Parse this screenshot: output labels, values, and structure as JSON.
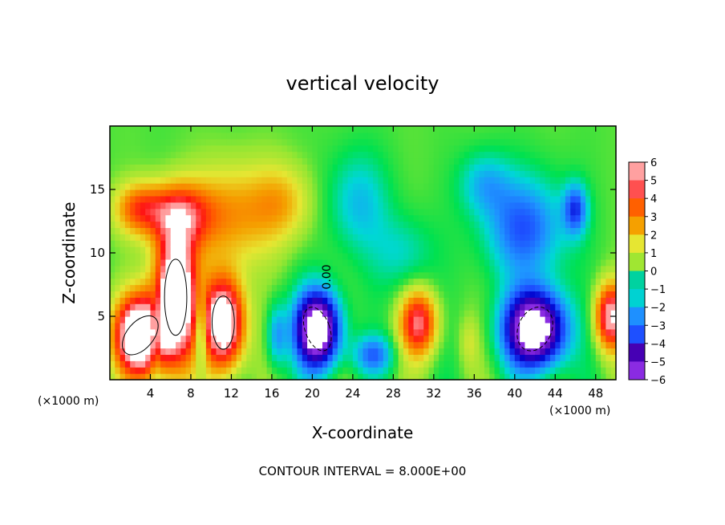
{
  "chart_data": {
    "type": "heatmap",
    "title": "vertical velocity",
    "xlabel": "X-coordinate",
    "ylabel": "Z-coordinate",
    "x_unit_left": "(×1000 m)",
    "x_unit_right": "(×1000 m)",
    "xlim": [
      0,
      50
    ],
    "ylim": [
      0,
      20
    ],
    "x_ticks": [
      4,
      8,
      12,
      16,
      20,
      24,
      28,
      32,
      36,
      40,
      44,
      48
    ],
    "y_ticks": [
      5,
      10,
      15
    ],
    "colorbar": {
      "levels": [
        6,
        5,
        4,
        3,
        2,
        1,
        0,
        -1,
        -2,
        -3,
        -4,
        -5,
        -6
      ],
      "colors": [
        "#8a2be2",
        "#5a00b4",
        "#0000cd",
        "#1e3cff",
        "#1e90ff",
        "#00d2d2",
        "#00e050",
        "#35e035",
        "#a0e632",
        "#e6e632",
        "#f0a000",
        "#ff5a00",
        "#ff0000",
        "#ff5050",
        "#ff9a9a"
      ]
    },
    "contour_label": "0.00",
    "footer": "CONTOUR INTERVAL = 8.000E+00",
    "cells": [
      {
        "x": 3.0,
        "z": 3.5,
        "w": -1.0,
        "sx": 2.4,
        "sz": 3.0,
        "v": 9
      },
      {
        "x": 6.5,
        "z": 6.5,
        "w": 0.0,
        "sx": 2.0,
        "sz": 5.0,
        "v": 9
      },
      {
        "x": 11.2,
        "z": 4.5,
        "w": 0.0,
        "sx": 2.0,
        "sz": 3.5,
        "v": 8
      },
      {
        "x": 7.0,
        "z": 13.0,
        "w": 0.0,
        "sx": 3.0,
        "sz": 2.5,
        "v": 4
      },
      {
        "x": 3.0,
        "z": 13.5,
        "w": 0.0,
        "sx": 2.5,
        "sz": 2.0,
        "v": 3.5
      },
      {
        "x": 12.0,
        "z": 13.0,
        "w": 0.0,
        "sx": 4.0,
        "sz": 4.0,
        "v": 2.5
      },
      {
        "x": 17.0,
        "z": 14.0,
        "w": 0.0,
        "sx": 3.0,
        "sz": 3.0,
        "v": 2
      },
      {
        "x": 4.5,
        "z": 4.0,
        "w": 0.0,
        "sx": 0.6,
        "sz": 3.0,
        "v": -3
      },
      {
        "x": 9.0,
        "z": 4.0,
        "w": 0.0,
        "sx": 0.6,
        "sz": 3.0,
        "v": -3
      },
      {
        "x": 20.5,
        "z": 4.0,
        "w": 0.5,
        "sx": 2.2,
        "sz": 3.0,
        "v": -9
      },
      {
        "x": 24.5,
        "z": 14.0,
        "w": 0.0,
        "sx": 3.0,
        "sz": 4.0,
        "v": -2
      },
      {
        "x": 29.0,
        "z": 10.0,
        "w": 0.0,
        "sx": 3.0,
        "sz": 3.0,
        "v": -1.5
      },
      {
        "x": 30.5,
        "z": 4.5,
        "w": -0.5,
        "sx": 1.8,
        "sz": 2.5,
        "v": 5
      },
      {
        "x": 35.5,
        "z": 3.0,
        "w": 0.0,
        "sx": 1.0,
        "sz": 2.0,
        "v": 1
      },
      {
        "x": 42.0,
        "z": 4.0,
        "w": -0.6,
        "sx": 3.0,
        "sz": 3.0,
        "v": -9
      },
      {
        "x": 41.0,
        "z": 12.0,
        "w": 0.0,
        "sx": 4.0,
        "sz": 4.0,
        "v": -3.5
      },
      {
        "x": 37.0,
        "z": 15.5,
        "w": 0.0,
        "sx": 2.5,
        "sz": 2.5,
        "v": -2
      },
      {
        "x": 46.0,
        "z": 13.5,
        "w": 0.0,
        "sx": 1.2,
        "sz": 2.0,
        "v": -3.5
      },
      {
        "x": 49.5,
        "z": 5.0,
        "w": 0.0,
        "sx": 1.5,
        "sz": 2.5,
        "v": 6
      },
      {
        "x": 26.0,
        "z": 2.0,
        "w": 0.0,
        "sx": 2.0,
        "sz": 1.5,
        "v": -3
      },
      {
        "x": 16.5,
        "z": 3.5,
        "w": 0.0,
        "sx": 1.0,
        "sz": 2.5,
        "v": -2.5
      }
    ]
  }
}
